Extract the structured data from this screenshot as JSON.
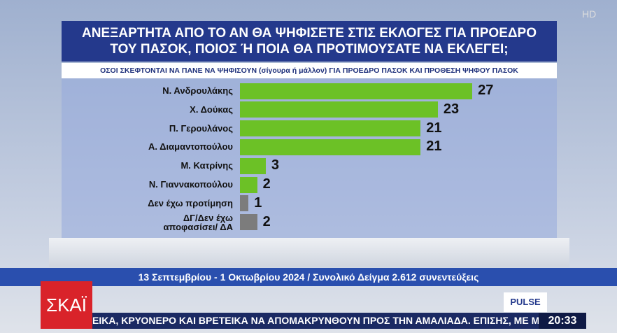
{
  "chart_data": {
    "type": "bar",
    "title": "ΑΝΕΞΑΡΤΗΤΑ ΑΠΟ ΤΟ ΑΝ ΘΑ ΨΗΦΙΣΕΤΕ ΣΤΙΣ ΕΚΛΟΓΕΣ ΓΙΑ ΠΡΟΕΔΡΟ ΤΟΥ ΠΑΣΟΚ, ΠΟΙΟΣ Ή ΠΟΙΑ ΘΑ ΠΡΟΤΙΜΟΥΣΑΤΕ ΝΑ ΕΚΛΕΓΕΙ;",
    "subtitle": "ΟΣΟΙ ΣΚΕΦΤΟΝΤΑΙ ΝΑ ΠΑΝΕ ΝΑ ΨΗΦΙΣΟΥΝ (σίγουρα ή μάλλον) ΓΙΑ ΠΡΟΕΔΡΟ ΠΑΣΟΚ ΚΑΙ ΠΡΟΘΕΣΗ ΨΗΦΟΥ ΠΑΣΟΚ",
    "categories": [
      "Ν. Ανδρουλάκης",
      "Χ. Δούκας",
      "Π. Γερουλάνος",
      "Α. Διαμαντοπούλου",
      "Μ. Κατρίνης",
      "Ν. Γιαννακοπούλου",
      "Δεν έχω προτίμηση",
      "ΔΓ/Δεν έχω αποφασίσει/ ΔΑ"
    ],
    "values": [
      27,
      23,
      21,
      21,
      3,
      2,
      1,
      2
    ],
    "colors": [
      "#6cc126",
      "#6cc126",
      "#6cc126",
      "#6cc126",
      "#6cc126",
      "#6cc126",
      "#7c7c7c",
      "#7c7c7c"
    ],
    "footnote": "13 Σεπτεμβρίου - 1 Οκτωβρίου 2024 / Συνολικό Δείγμα 2.612 συνεντεύξεις"
  },
  "broadcast": {
    "channel": "ΣΚΑΪ",
    "quality": "HD",
    "pollster": "PULSE",
    "ticker": "ΕΙΚΑ, ΚΡΥΟΝΕΡΟ ΚΑΙ ΒΡΕΤΕΙΚΑ ΝΑ ΑΠΟΜΑΚΡΥΝΘΟΥΝ ΠΡΟΣ ΤΗΝ ΑΜΑΛΙΑΔΑ. ΕΠΙΣΗΣ, ΜΕ ΜΗ",
    "time": "20:33"
  }
}
